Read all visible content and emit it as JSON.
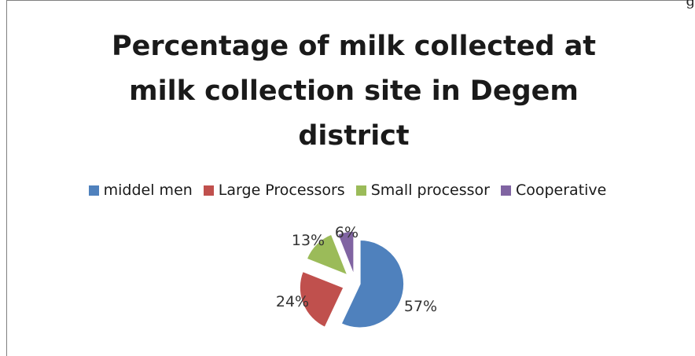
{
  "page_fragment": "g",
  "chart_data": {
    "type": "pie",
    "title_lines": [
      "Percentage of milk collected  at",
      "milk collection site in Degem",
      "district"
    ],
    "categories": [
      "middel men",
      "Large Processors",
      "Small processor",
      "Cooperative"
    ],
    "values": [
      57,
      24,
      13,
      6
    ],
    "data_labels": [
      "57%",
      "24%",
      "13%",
      "6%"
    ],
    "colors": [
      "#4F81BD",
      "#C0504D",
      "#9BBB59",
      "#8064A2"
    ],
    "exploded": true,
    "legend_position": "top",
    "start_angle_deg": 0,
    "direction": "clockwise"
  }
}
